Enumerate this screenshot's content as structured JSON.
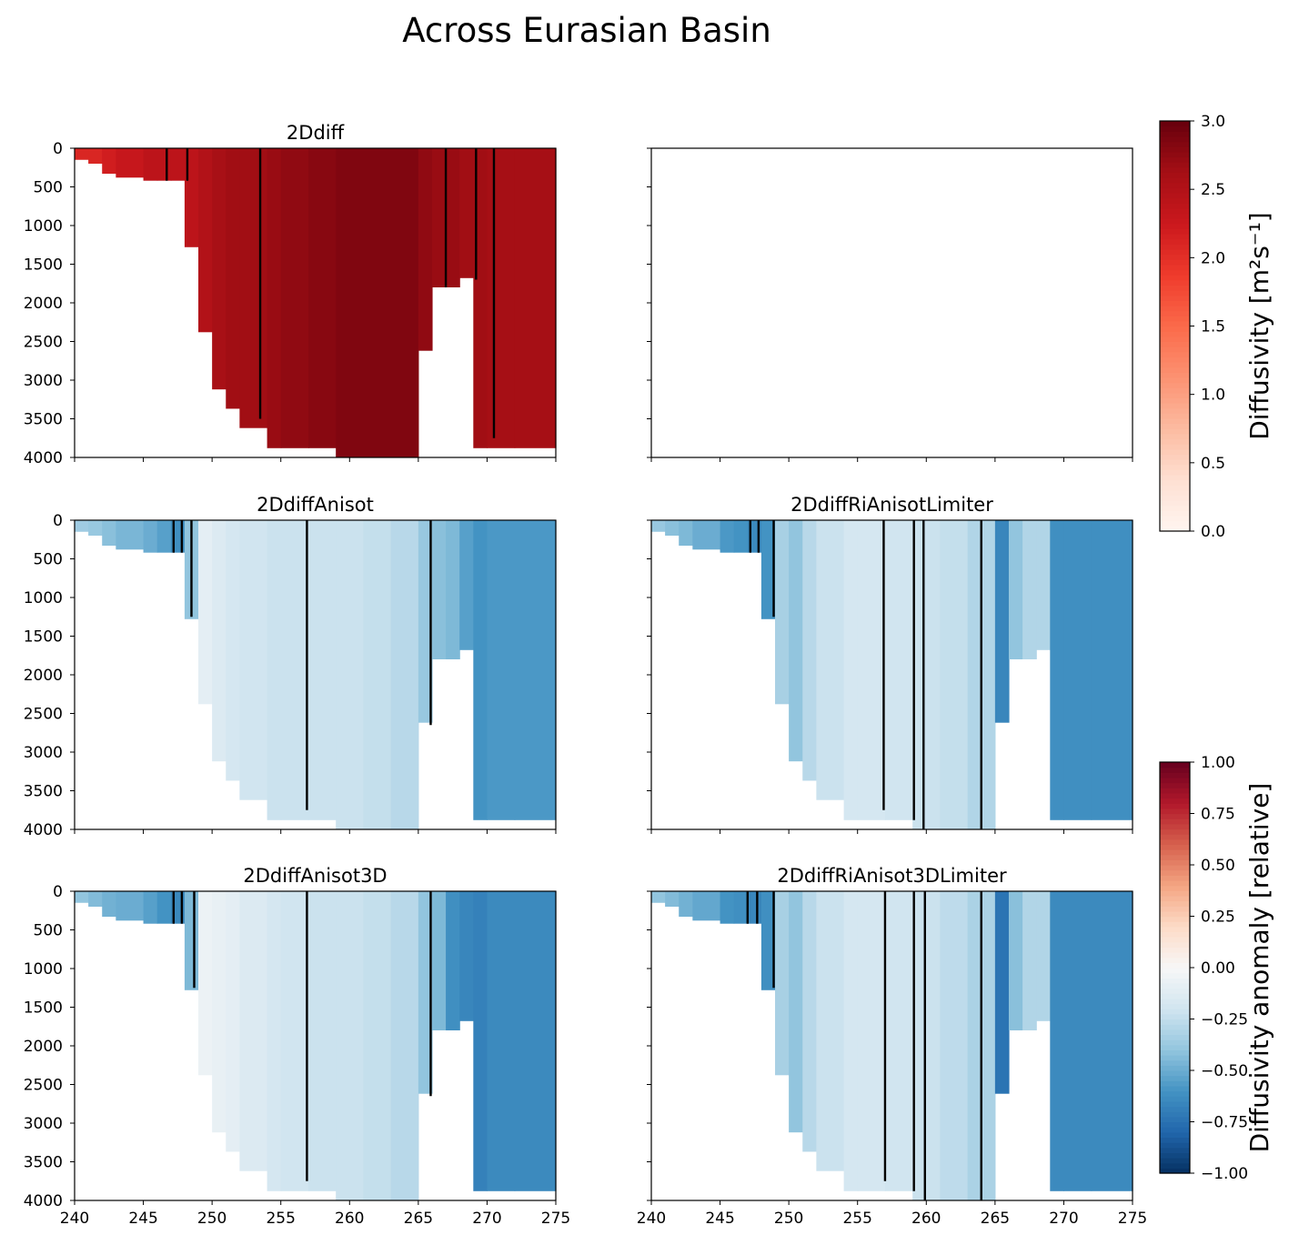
{
  "chart_data": {
    "type": "heatmap",
    "title": "Across Eurasian Basin",
    "x_range": [
      240,
      275
    ],
    "y_range": [
      0,
      4000
    ],
    "x_ticks": [
      240,
      245,
      250,
      255,
      260,
      265,
      270,
      275
    ],
    "y_ticks": [
      0,
      500,
      1000,
      1500,
      2000,
      2500,
      3000,
      3500,
      4000
    ],
    "columns": [
      {
        "x0": 240,
        "x1": 241,
        "depth": 150
      },
      {
        "x0": 241,
        "x1": 242,
        "depth": 200
      },
      {
        "x0": 242,
        "x1": 243,
        "depth": 330
      },
      {
        "x0": 243,
        "x1": 245,
        "depth": 380
      },
      {
        "x0": 245,
        "x1": 246,
        "depth": 420
      },
      {
        "x0": 246,
        "x1": 247,
        "depth": 420
      },
      {
        "x0": 247,
        "x1": 248,
        "depth": 420
      },
      {
        "x0": 248,
        "x1": 249,
        "depth": 1280
      },
      {
        "x0": 249,
        "x1": 250,
        "depth": 2380
      },
      {
        "x0": 250,
        "x1": 251,
        "depth": 3120
      },
      {
        "x0": 251,
        "x1": 252,
        "depth": 3370
      },
      {
        "x0": 252,
        "x1": 254,
        "depth": 3620
      },
      {
        "x0": 254,
        "x1": 255,
        "depth": 3880
      },
      {
        "x0": 255,
        "x1": 257,
        "depth": 3880
      },
      {
        "x0": 257,
        "x1": 259,
        "depth": 3880
      },
      {
        "x0": 259,
        "x1": 261,
        "depth": 4000
      },
      {
        "x0": 261,
        "x1": 263,
        "depth": 4000
      },
      {
        "x0": 263,
        "x1": 265,
        "depth": 4000
      },
      {
        "x0": 265,
        "x1": 266,
        "depth": 2620
      },
      {
        "x0": 266,
        "x1": 267,
        "depth": 1800
      },
      {
        "x0": 267,
        "x1": 268,
        "depth": 1800
      },
      {
        "x0": 268,
        "x1": 269,
        "depth": 1680
      },
      {
        "x0": 269,
        "x1": 270,
        "depth": 3880
      },
      {
        "x0": 270,
        "x1": 272,
        "depth": 3880
      },
      {
        "x0": 272,
        "x1": 275,
        "depth": 3880
      }
    ],
    "panels": [
      {
        "title": "2Ddiff",
        "cmap": "Reds",
        "values": [
          2.1,
          2.1,
          2.2,
          2.3,
          2.4,
          2.4,
          2.4,
          2.4,
          2.5,
          2.6,
          2.65,
          2.65,
          2.7,
          2.75,
          2.8,
          2.85,
          2.85,
          2.85,
          2.75,
          2.7,
          2.7,
          2.65,
          2.65,
          2.62,
          2.62
        ],
        "lines": [
          {
            "x": 246.7,
            "depth": 420
          },
          {
            "x": 248.2,
            "depth": 420
          },
          {
            "x": 253.5,
            "depth": 3500
          },
          {
            "x": 267.0,
            "depth": 1800
          },
          {
            "x": 269.2,
            "depth": 1700
          },
          {
            "x": 270.5,
            "depth": 3750
          }
        ]
      },
      {
        "title": "",
        "cmap": "empty",
        "values": [],
        "lines": []
      },
      {
        "title": "2DdiffAnisot",
        "cmap": "RdBu_r",
        "values": [
          -0.36,
          -0.38,
          -0.42,
          -0.46,
          -0.5,
          -0.55,
          -0.62,
          -0.4,
          -0.1,
          -0.14,
          -0.18,
          -0.2,
          -0.22,
          -0.22,
          -0.22,
          -0.22,
          -0.24,
          -0.28,
          -0.38,
          -0.42,
          -0.45,
          -0.55,
          -0.6,
          -0.58,
          -0.58
        ],
        "lines": [
          {
            "x": 247.2,
            "depth": 420
          },
          {
            "x": 247.8,
            "depth": 420
          },
          {
            "x": 248.5,
            "depth": 1250
          },
          {
            "x": 256.9,
            "depth": 3750
          },
          {
            "x": 265.9,
            "depth": 2650
          }
        ]
      },
      {
        "title": "2DdiffRiAnisotLimiter",
        "cmap": "RdBu_r",
        "values": [
          -0.38,
          -0.42,
          -0.45,
          -0.5,
          -0.58,
          -0.6,
          -0.64,
          -0.6,
          -0.33,
          -0.4,
          -0.28,
          -0.22,
          -0.18,
          -0.18,
          -0.2,
          -0.22,
          -0.24,
          -0.3,
          -0.66,
          -0.4,
          -0.3,
          -0.3,
          -0.62,
          -0.62,
          -0.62
        ],
        "lines": [
          {
            "x": 247.2,
            "depth": 420
          },
          {
            "x": 247.8,
            "depth": 420
          },
          {
            "x": 248.9,
            "depth": 1250
          },
          {
            "x": 256.9,
            "depth": 3750
          },
          {
            "x": 259.1,
            "depth": 3880
          },
          {
            "x": 259.8,
            "depth": 4000
          },
          {
            "x": 264.0,
            "depth": 4000
          }
        ]
      },
      {
        "title": "2DdiffAnisot3D",
        "cmap": "RdBu_r",
        "values": [
          -0.4,
          -0.44,
          -0.48,
          -0.5,
          -0.55,
          -0.6,
          -0.65,
          -0.45,
          -0.06,
          -0.08,
          -0.1,
          -0.14,
          -0.18,
          -0.2,
          -0.22,
          -0.22,
          -0.24,
          -0.28,
          -0.4,
          -0.45,
          -0.62,
          -0.66,
          -0.68,
          -0.64,
          -0.64
        ],
        "lines": [
          {
            "x": 247.2,
            "depth": 420
          },
          {
            "x": 247.8,
            "depth": 420
          },
          {
            "x": 248.7,
            "depth": 1250
          },
          {
            "x": 256.9,
            "depth": 3750
          },
          {
            "x": 265.9,
            "depth": 2650
          }
        ]
      },
      {
        "title": "2DdiffRiAnisot3DLimiter",
        "cmap": "RdBu_r",
        "values": [
          -0.4,
          -0.44,
          -0.48,
          -0.52,
          -0.6,
          -0.62,
          -0.66,
          -0.62,
          -0.33,
          -0.4,
          -0.28,
          -0.22,
          -0.18,
          -0.18,
          -0.2,
          -0.22,
          -0.26,
          -0.32,
          -0.74,
          -0.42,
          -0.3,
          -0.3,
          -0.64,
          -0.64,
          -0.64
        ],
        "lines": [
          {
            "x": 247.0,
            "depth": 420
          },
          {
            "x": 247.7,
            "depth": 420
          },
          {
            "x": 248.9,
            "depth": 1250
          },
          {
            "x": 257.0,
            "depth": 3750
          },
          {
            "x": 259.1,
            "depth": 3880
          },
          {
            "x": 259.9,
            "depth": 4000
          },
          {
            "x": 264.0,
            "depth": 4000
          }
        ]
      }
    ],
    "colorbars": [
      {
        "cmap": "Reds",
        "range": [
          0.0,
          3.0
        ],
        "ticks": [
          "0.0",
          "0.5",
          "1.0",
          "1.5",
          "2.0",
          "2.5",
          "3.0"
        ],
        "label": "Diffusivity [m²s⁻¹]"
      },
      {
        "cmap": "RdBu_r",
        "range": [
          -1.0,
          1.0
        ],
        "ticks": [
          "−1.00",
          "−0.75",
          "−0.50",
          "−0.25",
          "0.00",
          "0.25",
          "0.50",
          "0.75",
          "1.00"
        ],
        "label": "Diffusivity anomaly [relative]"
      }
    ]
  }
}
